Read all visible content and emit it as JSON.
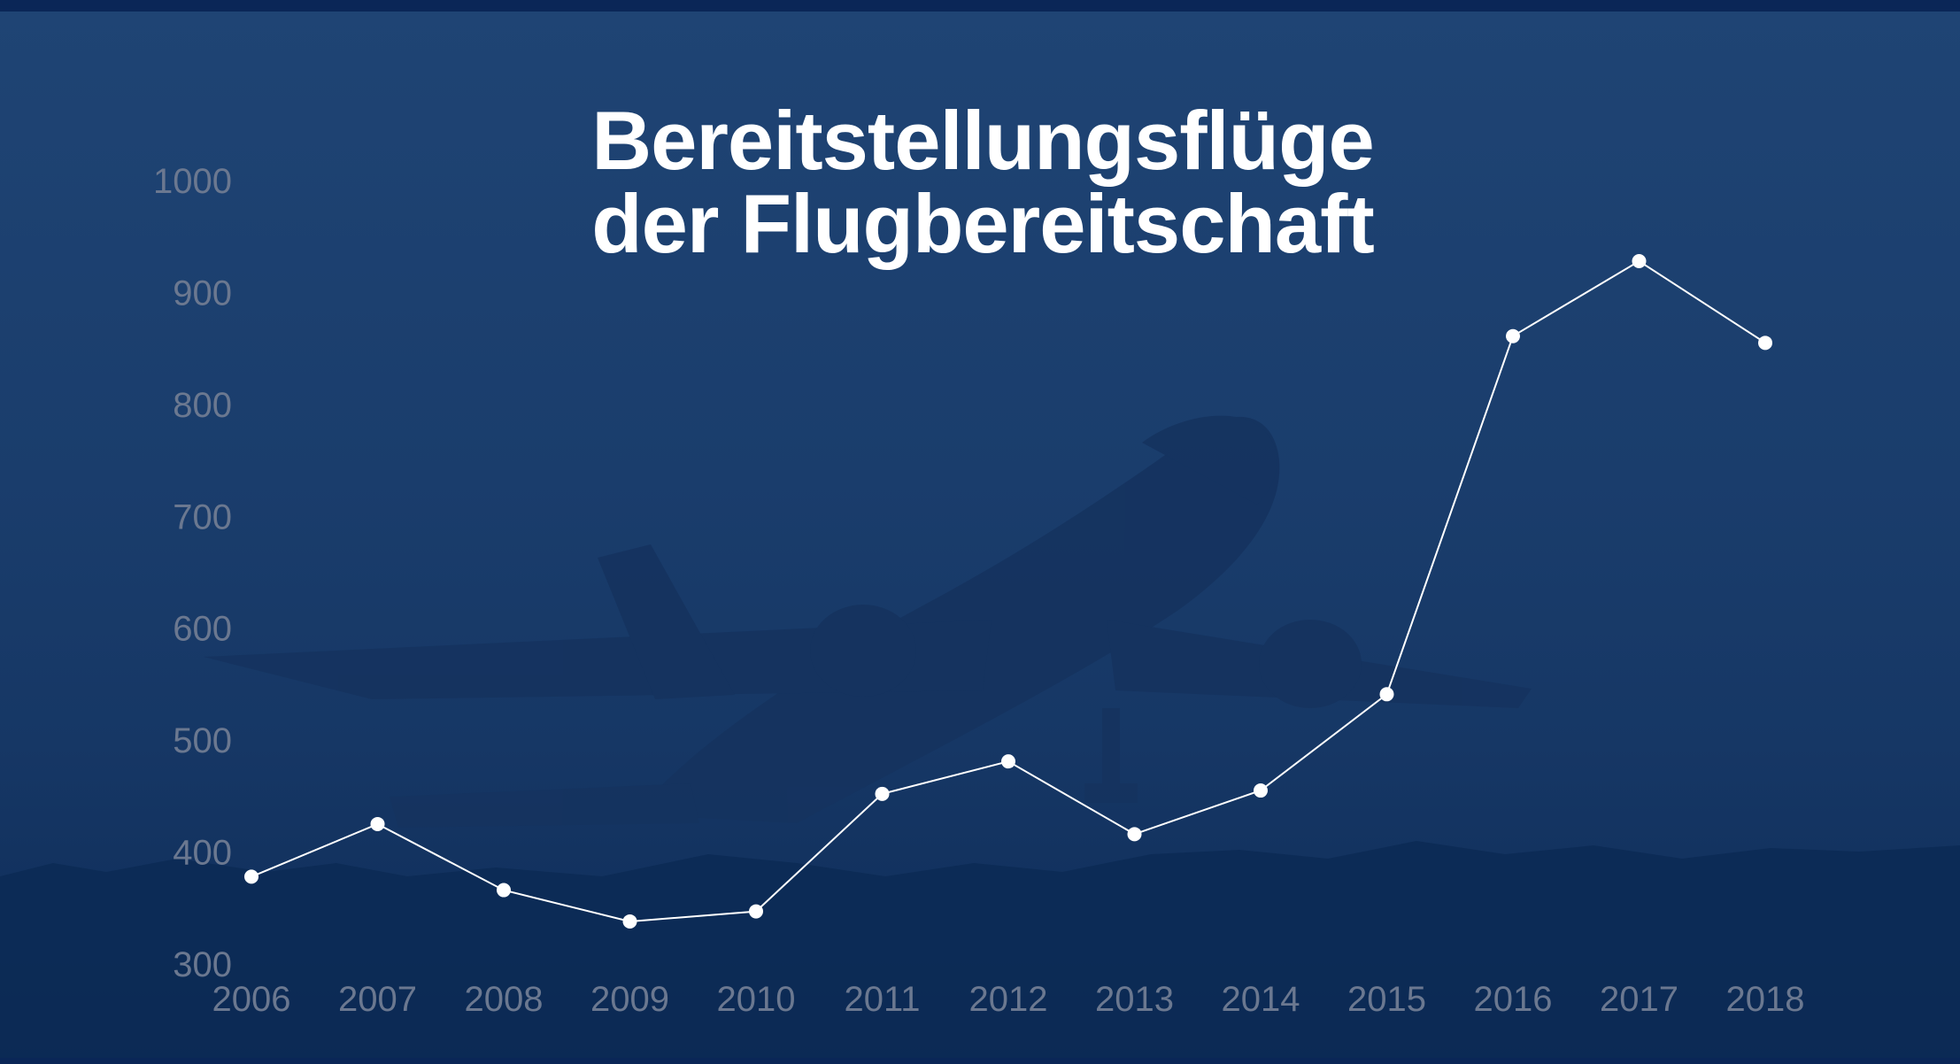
{
  "title": {
    "line1": "Bereitstellungsflüge",
    "line2": "der Flugbereitschaft"
  },
  "chart_data": {
    "type": "line",
    "title": "Bereitstellungsflüge der Flugbereitschaft",
    "xlabel": "",
    "ylabel": "",
    "x": [
      "2006",
      "2007",
      "2008",
      "2009",
      "2010",
      "2011",
      "2012",
      "2013",
      "2014",
      "2015",
      "2016",
      "2017",
      "2018"
    ],
    "series": [
      {
        "values": [
          378,
          425,
          366,
          338,
          347,
          452,
          481,
          416,
          455,
          541,
          861,
          928,
          855
        ]
      }
    ],
    "yticks": [
      "1000",
      "900",
      "800",
      "700",
      "600",
      "500",
      "400",
      "300"
    ],
    "ylim": [
      300,
      1000
    ],
    "grid": false,
    "legend": "none",
    "line_color": "#ffffff",
    "tick_color": "#6b7890",
    "background_color": "#1b3e6d"
  }
}
